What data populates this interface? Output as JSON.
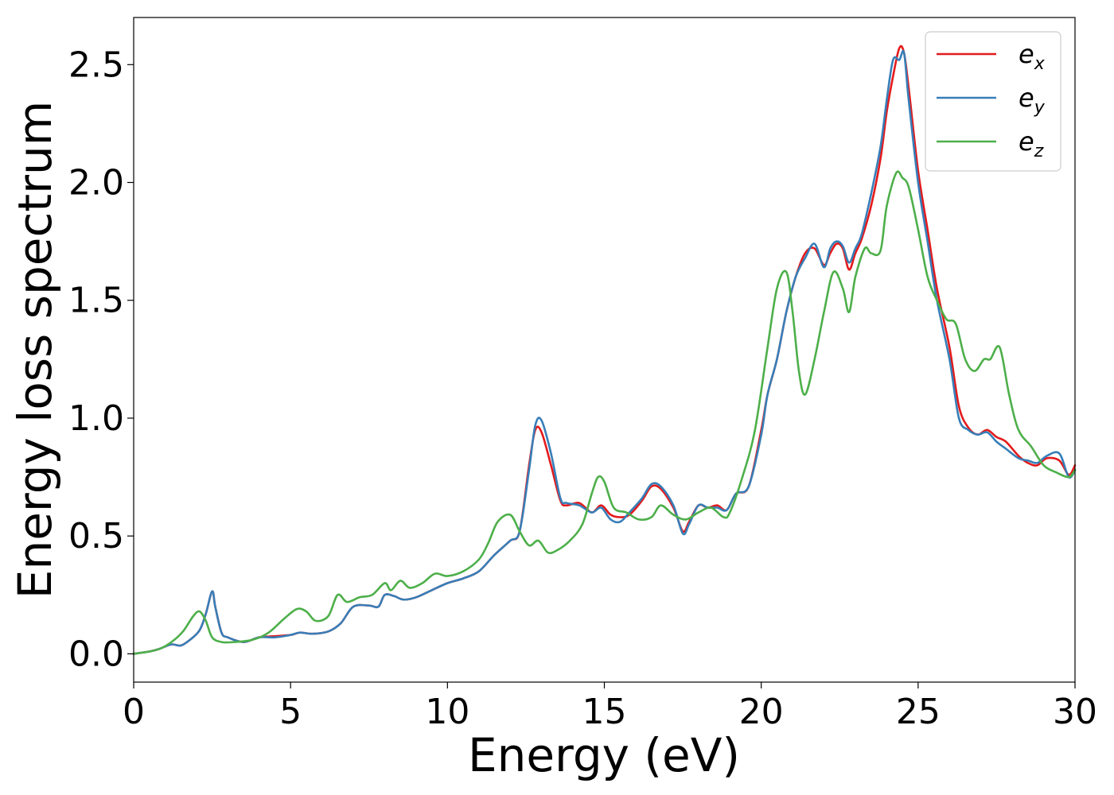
{
  "chart_data": {
    "type": "line",
    "title": "",
    "xlabel": "Energy (eV)",
    "ylabel": "Energy loss spectrum",
    "xlim": [
      0,
      30
    ],
    "ylim": [
      -0.12,
      2.7
    ],
    "xticks": [
      0,
      5,
      10,
      15,
      20,
      25,
      30
    ],
    "xtick_labels": [
      "0",
      "5",
      "10",
      "15",
      "20",
      "25",
      "30"
    ],
    "yticks": [
      0.0,
      0.5,
      1.0,
      1.5,
      2.0,
      2.5
    ],
    "ytick_labels": [
      "0.0",
      "0.5",
      "1.0",
      "1.5",
      "2.0",
      "2.5"
    ],
    "grid": false,
    "legend_position": "top-right",
    "series": [
      {
        "name": "e_x",
        "label_base": "e",
        "label_sub": "x",
        "color": "#e41a1c",
        "x": [
          0,
          0.5,
          0.8,
          1.2,
          1.5,
          1.8,
          2.1,
          2.3,
          2.5,
          2.6,
          2.8,
          3.0,
          3.5,
          4.0,
          4.5,
          5.0,
          5.3,
          5.7,
          6.2,
          6.6,
          7.0,
          7.5,
          7.8,
          8.0,
          8.3,
          8.6,
          9.0,
          9.5,
          10.0,
          10.5,
          11.0,
          11.5,
          12.0,
          12.3,
          12.6,
          12.8,
          13.0,
          13.3,
          13.6,
          13.8,
          14.2,
          14.6,
          14.9,
          15.2,
          15.5,
          15.8,
          16.2,
          16.5,
          16.8,
          17.2,
          17.5,
          17.7,
          18.0,
          18.3,
          18.6,
          18.9,
          19.2,
          19.6,
          20.0,
          20.2,
          20.5,
          20.8,
          21.1,
          21.4,
          21.7,
          22.0,
          22.2,
          22.4,
          22.6,
          22.8,
          23.0,
          23.2,
          23.5,
          23.8,
          24.0,
          24.2,
          24.4,
          24.55,
          24.7,
          25.0,
          25.3,
          25.6,
          26.0,
          26.3,
          26.6,
          26.9,
          27.2,
          27.5,
          27.8,
          28.2,
          28.5,
          28.8,
          29.1,
          29.5,
          29.8,
          30.0
        ],
        "values": [
          0,
          0.01,
          0.02,
          0.04,
          0.035,
          0.06,
          0.1,
          0.17,
          0.265,
          0.2,
          0.09,
          0.07,
          0.05,
          0.07,
          0.075,
          0.08,
          0.09,
          0.085,
          0.095,
          0.13,
          0.2,
          0.205,
          0.2,
          0.25,
          0.245,
          0.23,
          0.24,
          0.27,
          0.3,
          0.32,
          0.35,
          0.42,
          0.48,
          0.52,
          0.8,
          0.95,
          0.94,
          0.8,
          0.65,
          0.63,
          0.64,
          0.6,
          0.63,
          0.59,
          0.58,
          0.59,
          0.65,
          0.71,
          0.7,
          0.62,
          0.52,
          0.56,
          0.63,
          0.62,
          0.63,
          0.61,
          0.68,
          0.71,
          0.95,
          1.1,
          1.25,
          1.45,
          1.6,
          1.7,
          1.72,
          1.65,
          1.7,
          1.74,
          1.72,
          1.63,
          1.7,
          1.76,
          1.9,
          2.1,
          2.3,
          2.45,
          2.57,
          2.55,
          2.4,
          2.05,
          1.8,
          1.55,
          1.3,
          1.05,
          0.96,
          0.93,
          0.95,
          0.92,
          0.9,
          0.84,
          0.81,
          0.8,
          0.83,
          0.82,
          0.76,
          0.8
        ]
      },
      {
        "name": "e_y",
        "label_base": "e",
        "label_sub": "y",
        "color": "#377eb8",
        "x": [
          0,
          0.5,
          0.8,
          1.2,
          1.5,
          1.8,
          2.1,
          2.3,
          2.5,
          2.6,
          2.8,
          3.0,
          3.5,
          4.0,
          4.5,
          5.0,
          5.3,
          5.7,
          6.2,
          6.6,
          7.0,
          7.5,
          7.8,
          8.0,
          8.3,
          8.6,
          9.0,
          9.5,
          10.0,
          10.5,
          11.0,
          11.5,
          12.0,
          12.3,
          12.6,
          12.8,
          13.0,
          13.3,
          13.6,
          13.8,
          14.2,
          14.6,
          14.9,
          15.2,
          15.5,
          15.8,
          16.2,
          16.5,
          16.8,
          17.2,
          17.5,
          17.7,
          18.0,
          18.3,
          18.6,
          18.9,
          19.2,
          19.6,
          20.0,
          20.2,
          20.5,
          20.8,
          21.1,
          21.4,
          21.7,
          22.0,
          22.2,
          22.4,
          22.6,
          22.8,
          23.0,
          23.2,
          23.5,
          23.8,
          24.0,
          24.2,
          24.4,
          24.55,
          24.7,
          25.0,
          25.3,
          25.6,
          26.0,
          26.3,
          26.6,
          26.9,
          27.2,
          27.5,
          27.8,
          28.2,
          28.5,
          28.8,
          29.1,
          29.5,
          29.8,
          30.0
        ],
        "values": [
          0,
          0.01,
          0.02,
          0.04,
          0.035,
          0.06,
          0.1,
          0.17,
          0.265,
          0.2,
          0.09,
          0.07,
          0.05,
          0.07,
          0.07,
          0.08,
          0.09,
          0.085,
          0.095,
          0.13,
          0.2,
          0.205,
          0.2,
          0.25,
          0.245,
          0.23,
          0.24,
          0.27,
          0.3,
          0.32,
          0.35,
          0.42,
          0.48,
          0.52,
          0.78,
          0.97,
          0.99,
          0.85,
          0.66,
          0.64,
          0.63,
          0.6,
          0.62,
          0.57,
          0.56,
          0.6,
          0.66,
          0.72,
          0.71,
          0.63,
          0.51,
          0.55,
          0.63,
          0.62,
          0.62,
          0.61,
          0.68,
          0.71,
          0.93,
          1.1,
          1.25,
          1.45,
          1.6,
          1.68,
          1.74,
          1.64,
          1.72,
          1.75,
          1.73,
          1.66,
          1.72,
          1.78,
          1.95,
          2.15,
          2.35,
          2.52,
          2.52,
          2.55,
          2.35,
          2.0,
          1.75,
          1.5,
          1.25,
          1.0,
          0.95,
          0.93,
          0.94,
          0.9,
          0.87,
          0.83,
          0.82,
          0.81,
          0.84,
          0.85,
          0.75,
          0.78
        ]
      },
      {
        "name": "e_z",
        "label_base": "e",
        "label_sub": "z",
        "color": "#4daf4a",
        "x": [
          0,
          0.5,
          0.9,
          1.3,
          1.6,
          1.9,
          2.1,
          2.3,
          2.5,
          2.8,
          3.2,
          3.8,
          4.3,
          4.8,
          5.2,
          5.5,
          5.8,
          6.2,
          6.5,
          6.8,
          7.2,
          7.6,
          8.0,
          8.2,
          8.5,
          8.8,
          9.2,
          9.6,
          10.0,
          10.5,
          11.0,
          11.3,
          11.6,
          12.0,
          12.3,
          12.6,
          12.9,
          13.2,
          13.5,
          13.9,
          14.3,
          14.6,
          14.8,
          15.0,
          15.3,
          15.7,
          16.1,
          16.5,
          16.8,
          17.2,
          17.6,
          18.0,
          18.4,
          18.8,
          19.0,
          19.4,
          19.8,
          20.2,
          20.5,
          20.8,
          21.0,
          21.2,
          21.4,
          21.7,
          22.0,
          22.3,
          22.6,
          22.8,
          23.0,
          23.3,
          23.5,
          23.8,
          24.0,
          24.3,
          24.5,
          24.7,
          25.0,
          25.3,
          25.6,
          25.9,
          26.2,
          26.5,
          26.8,
          27.1,
          27.3,
          27.6,
          27.9,
          28.2,
          28.6,
          29.0,
          29.4,
          29.8,
          30.0
        ],
        "values": [
          0,
          0.01,
          0.025,
          0.06,
          0.1,
          0.16,
          0.18,
          0.14,
          0.07,
          0.05,
          0.05,
          0.06,
          0.09,
          0.15,
          0.19,
          0.18,
          0.14,
          0.16,
          0.25,
          0.22,
          0.24,
          0.25,
          0.3,
          0.27,
          0.31,
          0.28,
          0.3,
          0.34,
          0.33,
          0.35,
          0.4,
          0.47,
          0.56,
          0.59,
          0.52,
          0.46,
          0.48,
          0.43,
          0.44,
          0.48,
          0.55,
          0.68,
          0.75,
          0.73,
          0.62,
          0.6,
          0.57,
          0.58,
          0.63,
          0.59,
          0.57,
          0.6,
          0.62,
          0.58,
          0.6,
          0.75,
          0.95,
          1.3,
          1.55,
          1.62,
          1.45,
          1.2,
          1.1,
          1.25,
          1.45,
          1.62,
          1.55,
          1.45,
          1.6,
          1.72,
          1.7,
          1.71,
          1.9,
          2.04,
          2.02,
          1.98,
          1.8,
          1.6,
          1.5,
          1.42,
          1.4,
          1.25,
          1.2,
          1.25,
          1.25,
          1.3,
          1.1,
          0.95,
          0.88,
          0.8,
          0.77,
          0.75,
          0.78
        ]
      }
    ]
  }
}
